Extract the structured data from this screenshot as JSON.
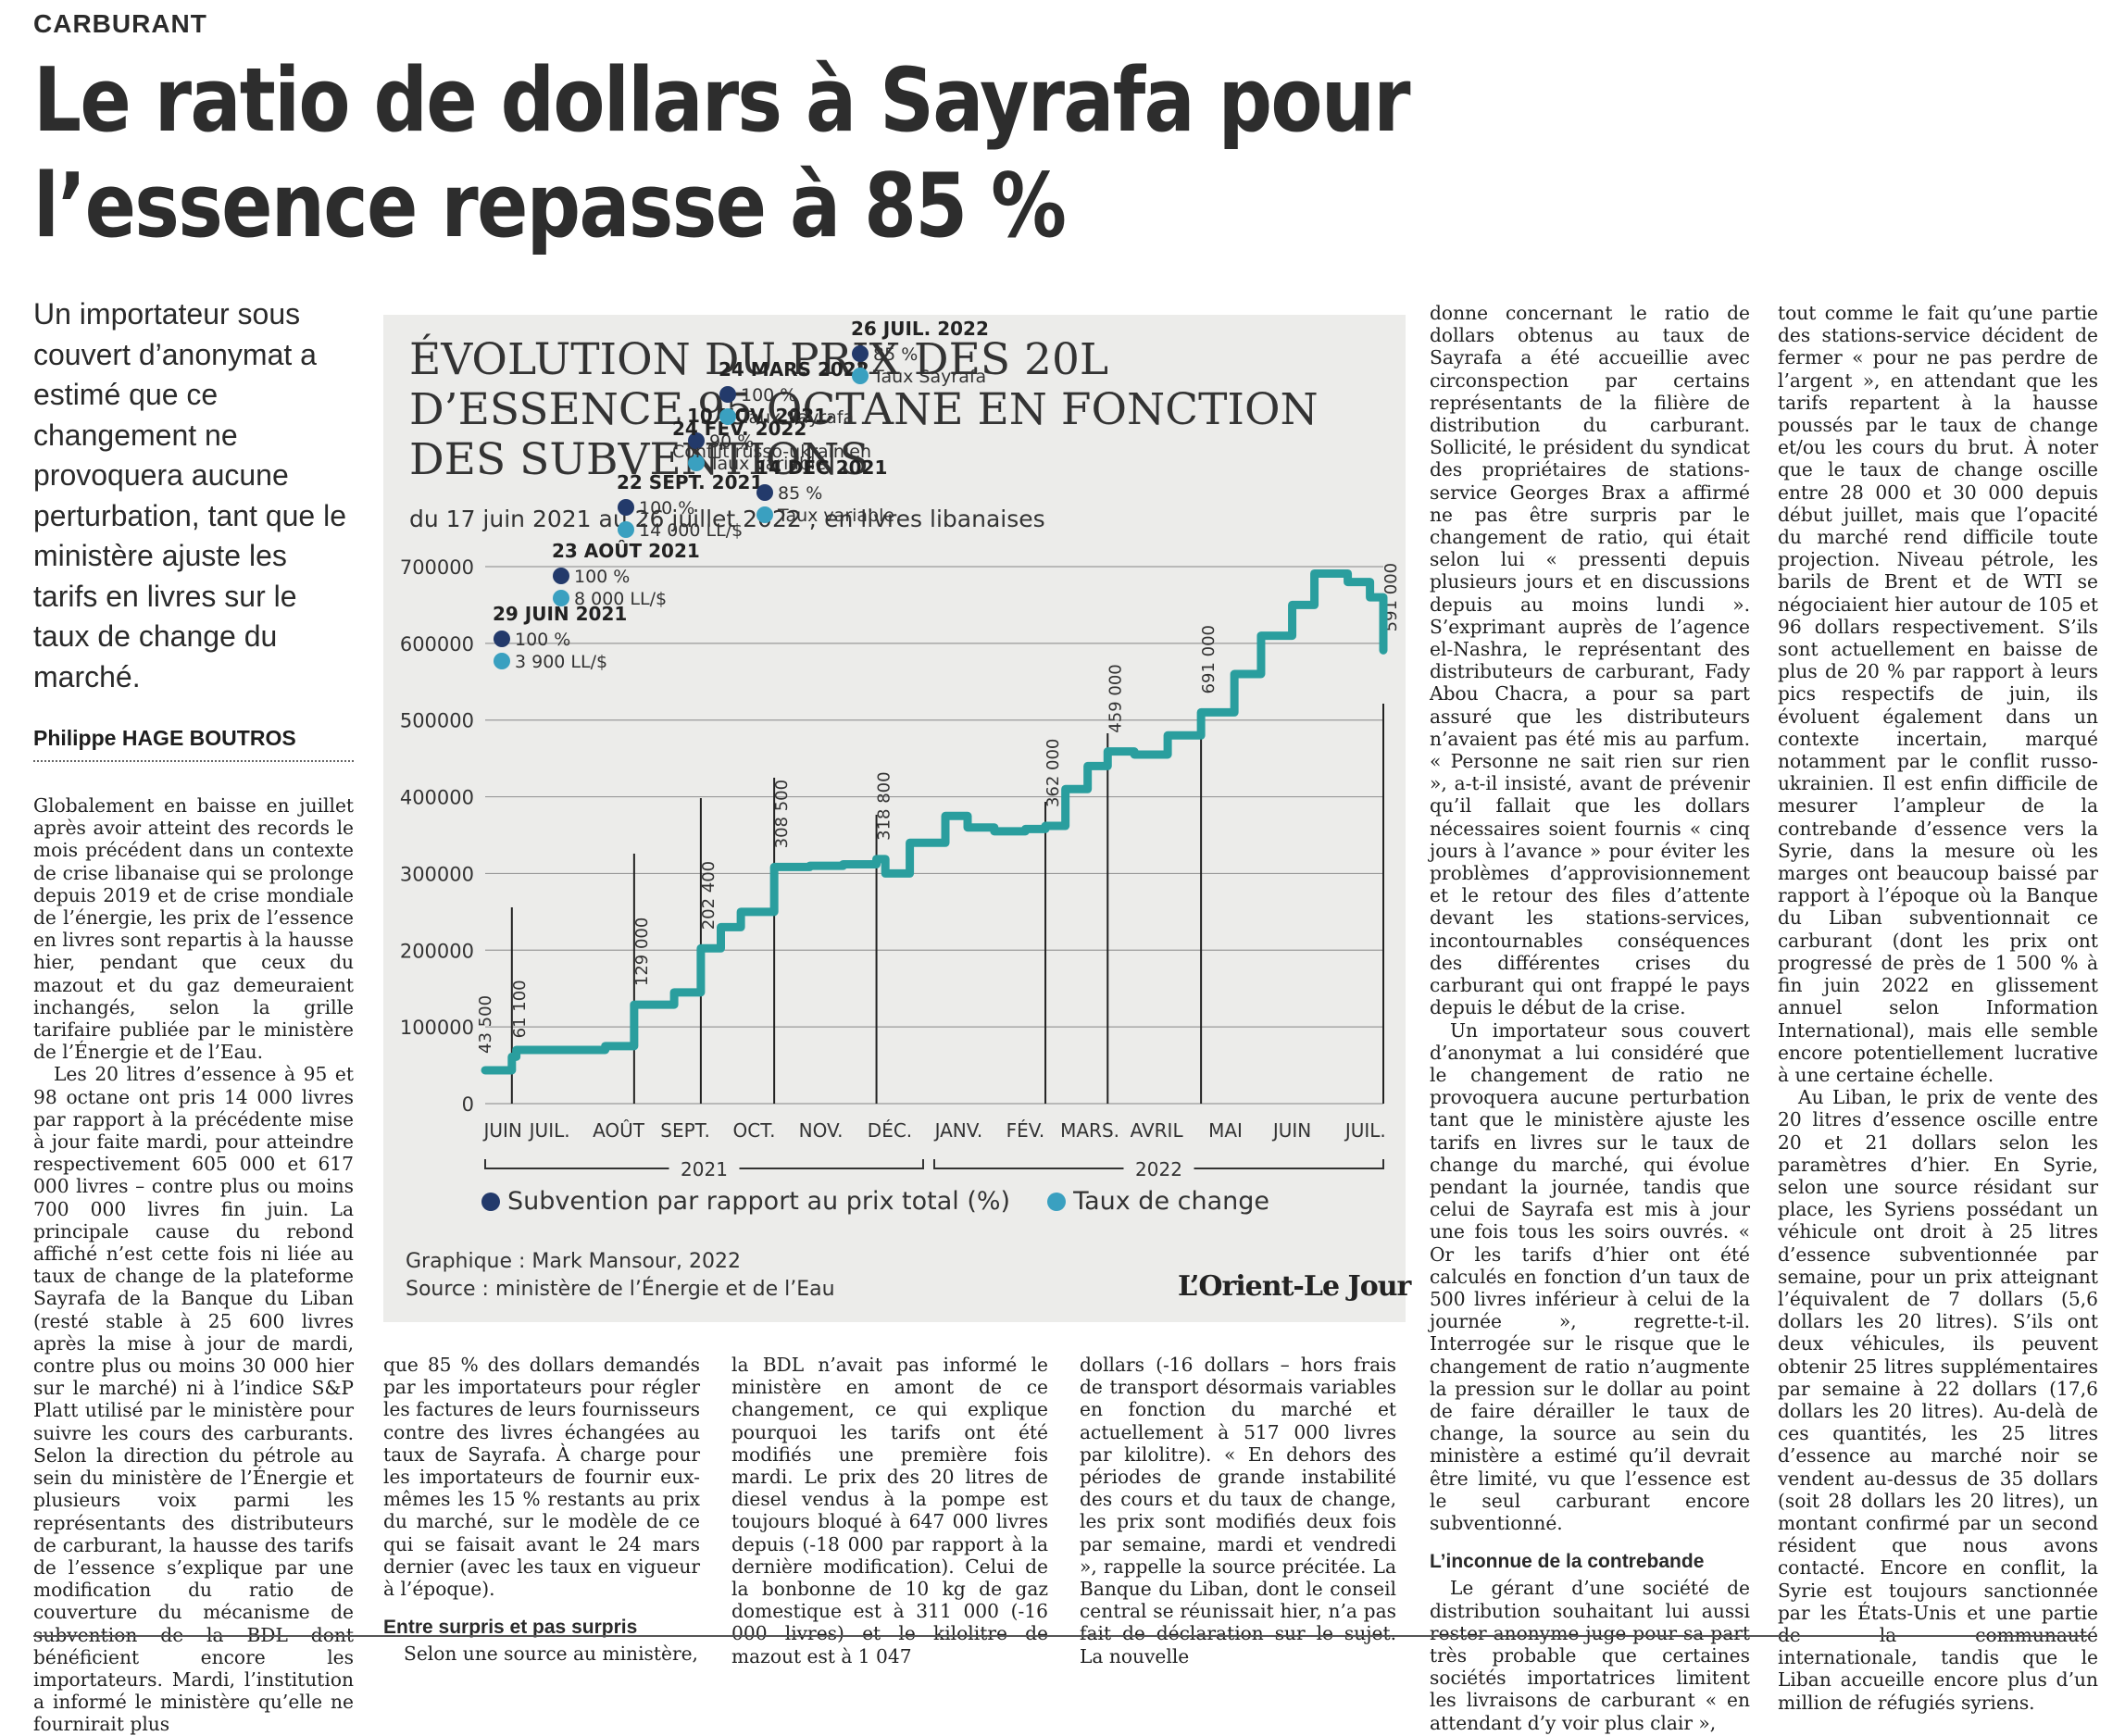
{
  "article": {
    "rubric": "CARBURANT",
    "headline": "Le ratio de dollars à Sayrafa pour l’essence repasse à 85 %",
    "chapeau": "Un importateur sous couvert d’anonymat a estimé que ce changement ne provoquera aucune perturbation, tant que le ministère ajuste les tarifs en livres sur le taux de change du marché.",
    "byline": "Philippe HAGE BOUTROS",
    "col1": [
      "Globalement en baisse en juillet après avoir atteint des records le mois précédent dans un contexte de crise libanaise qui se prolonge depuis 2019 et de crise mondiale de l’énergie, les prix de l’essence en livres sont repartis à la hausse hier, pendant que ceux du mazout et du gaz demeuraient inchangés, selon la grille tarifaire publiée par le ministère de l’Énergie et de l’Eau.",
      "Les 20 litres d’essence à 95 et 98 octane ont pris 14 000 livres par rapport à la précédente mise à jour faite mardi, pour atteindre respectivement 605 000 et 617 000 livres – contre plus ou moins 700 000 livres fin juin. La principale cause du rebond affiché n’est cette fois ni liée au taux de change de la plateforme Sayrafa de la Banque du Liban (resté stable à 25 600 livres après la mise à jour de mardi, contre plus ou moins 30 000 hier sur le marché) ni à l’indice S&P Platt utilisé par le ministère pour suivre les cours des carburants. Selon la direction du pétrole au sein du ministère de l’Énergie et plusieurs voix parmi les représentants des distributeurs de carburant, la hausse des tarifs de l’essence s’explique par une modification du ratio de couverture du mécanisme de subvention de la BDL dont bénéficient encore les importateurs. Mardi, l’institution a informé le ministère qu’elle ne fournirait plus"
    ],
    "col2": [
      "que 85 % des dollars demandés par les importateurs pour régler les factures de leurs fournisseurs contre des livres échangées au taux de Sayrafa. À charge pour les importateurs de fournir eux-mêmes les 15 % restants au prix du marché, sur le modèle de ce qui se faisait avant le 24 mars dernier (avec les taux en vigueur à l’époque)."
    ],
    "col2_subhead": "Entre surpris et pas surpris",
    "col2_after": "Selon une source au ministère,",
    "col3": [
      "la BDL n’avait pas informé le ministère en amont de ce changement, ce qui explique pourquoi les tarifs ont été modifiés une première fois mardi. Le prix des 20 litres de diesel vendus à la pompe est toujours bloqué à 647 000 livres depuis (-18 000 par rapport à la dernière modification). Celui de la bonbonne de 10 kg de gaz domestique est à 311 000 (-16 000 livres) et le kilolitre de mazout est à 1 047"
    ],
    "col4": [
      "dollars (-16 dollars – hors frais de transport désormais variables en fonction du marché et actuellement à 517 000 livres par kilolitre). « En dehors des périodes de grande instabilité des cours et du taux de change, les prix sont modifiés deux fois par semaine, mardi et vendredi », rappelle la source précitée. La Banque du Liban, dont le conseil central se réunissait hier, n’a pas fait de déclaration sur le sujet. La nouvelle"
    ],
    "col5": [
      "donne concernant le ratio de dollars obtenus au taux de Sayrafa a été accueillie avec circonspection par certains représentants de la filière de distribution du carburant. Sollicité, le président du syndicat des propriétaires de stations-service Georges Brax a affirmé ne pas être surpris par le changement de ratio, qui était selon lui « pressenti depuis plusieurs jours et en discussions depuis au moins lundi ». S’exprimant auprès de l’agence el-Nashra, le représentant des distributeurs de carburant, Fady Abou Chacra, a pour sa part assuré que les distributeurs n’avaient pas été mis au parfum. « Personne ne sait rien sur rien », a-t-il insisté, avant de prévenir qu’il fallait que les dollars nécessaires soient fournis « cinq jours à l’avance » pour éviter les problèmes d’approvisionnement et le retour des files d’attente devant les stations-services, incontournables conséquences des différentes crises du carburant qui ont frappé le pays depuis le début de la crise.",
      "Un importateur sous couvert d’anonymat a lui considéré que le changement de ratio ne provoquera aucune perturbation tant que le ministère ajuste les tarifs en livres sur le taux de change du marché, qui évolue pendant la journée, tandis que celui de Sayrafa est mis à jour une fois tous les soirs ouvrés. « Or les tarifs d’hier ont été calculés en fonction d’un taux de 500 livres inférieur à celui de la journée », regrette-t-il. Interrogée sur le risque que le changement de ratio n’augmente la pression sur le dollar au point de faire dérailler le taux de change, la source au sein du ministère a estimé qu’il devrait être limité, vu que l’essence est le seul carburant encore subventionné."
    ],
    "col5_subhead": "L’inconnue de la contrebande",
    "col5_after": "Le gérant d’une société de distribution souhaitant lui aussi rester anonyme juge pour sa part très probable que certaines sociétés importatrices limitent les livraisons de carburant « en attendant d’y voir plus clair »,",
    "col6": [
      "tout comme le fait qu’une partie des stations-service décident de fermer « pour ne pas perdre de l’argent », en attendant que les tarifs repartent à la hausse poussés par le taux de change et/ou les cours du brut. À noter que le taux de change oscille entre 28 000 et 30 000 depuis début juillet, mais que l’opacité du marché rend difficile toute projection. Niveau pétrole, les barils de Brent et de WTI se négociaient hier autour de 105 et 96 dollars respectivement. S’ils sont actuellement en baisse de plus de 20 % par rapport à leurs pics respectifs de juin, ils évoluent également dans un contexte incertain, marqué notamment par le conflit russo-ukrainien. Il est enfin difficile de mesurer l’ampleur de la contrebande d’essence vers la Syrie, dans la mesure où les marges ont beaucoup baissé par rapport à l’époque où la Banque du Liban subventionnait ce carburant (dont les prix ont progressé de près de 1 500 % à fin juin 2022 en glissement annuel selon Information International), mais elle semble encore potentiellement lucrative à une certaine échelle.",
      "Au Liban, le prix de vente des 20 litres d’essence oscille entre 20 et 21 dollars selon les paramètres d’hier. En Syrie, selon une source résidant sur place, les Syriens possédant un véhicule ont droit à 25 litres d’essence subventionnée par semaine, pour un prix atteignant l’équivalent de 7 dollars (5,6 dollars les 20 litres). S’ils ont deux véhicules, ils peuvent obtenir 25 litres supplémentaires par semaine à 22 dollars (17,6 dollars les 20 litres). Au-delà de ces quantités, les 25 litres d’essence au marché noir se vendent au-dessus de 35 dollars (soit 28 dollars les 20 litres), un montant confirmé par un second résident que nous avons contacté. Encore en conflit, la Syrie est toujours sanctionnée par les États-Unis et une partie de la communauté internationale, tandis que le Liban accueille encore plus d’un million de réfugiés syriens."
    ]
  },
  "infographic": {
    "title": "ÉVOLUTION DU PRIX DES 20L D’ESSENCE 95 OCTANE EN FONCTION DES SUBVENTIONS",
    "subtitle": "du 17 juin 2021 au 26 juillet 2022 ; en livres libanaises",
    "legend_subsidy": "Subvention par rapport au prix total (%)",
    "legend_rate": "Taux de change",
    "credit_line1": "Graphique : Mark Mansour, 2022",
    "credit_line2": "Source : ministère de l’Énergie et de l’Eau",
    "logo": "L’Orient-Le Jour",
    "colors": {
      "line": "#2a9e9e",
      "subsidy_dot": "#233a6b",
      "rate_dot": "#3aa0c0",
      "background": "#ececea"
    }
  },
  "chart_data": {
    "type": "line",
    "title": "ÉVOLUTION DU PRIX DES 20L D’ESSENCE 95 OCTANE EN FONCTION DES SUBVENTIONS",
    "subtitle": "du 17 juin 2021 au 26 juillet 2022 ; en livres libanaises",
    "xlabel": "",
    "ylabel": "",
    "ylim": [
      0,
      700000
    ],
    "yticks": [
      "0",
      "100000",
      "200000",
      "300000",
      "400000",
      "500000",
      "600000",
      "700000"
    ],
    "months": [
      "JUIN",
      "JUIL.",
      "AOÛT",
      "SEPT.",
      "OCT.",
      "NOV.",
      "DÉC.",
      "JANV.",
      "FÉV.",
      "MARS.",
      "AVRIL",
      "MAI",
      "JUIN",
      "JUIL."
    ],
    "years": [
      "2021",
      "2022"
    ],
    "grid": true,
    "series": [
      {
        "x": [
          "2021-06-17",
          "2021-06-29",
          "2021-07-01",
          "2021-08-10",
          "2021-08-23",
          "2021-09-10",
          "2021-09-22",
          "2021-10-01",
          "2021-10-10",
          "2021-10-25",
          "2021-11-10",
          "2021-11-25",
          "2021-12-10",
          "2021-12-14",
          "2021-12-25",
          "2022-01-10",
          "2022-01-20",
          "2022-02-01",
          "2022-02-15",
          "2022-02-24",
          "2022-03-05",
          "2022-03-15",
          "2022-03-24",
          "2022-04-05",
          "2022-04-20",
          "2022-05-05",
          "2022-05-20",
          "2022-06-01",
          "2022-06-15",
          "2022-06-25",
          "2022-07-10",
          "2022-07-20",
          "2022-07-26"
        ],
        "values": [
          43500,
          61100,
          70000,
          75000,
          129000,
          145000,
          202400,
          230000,
          250000,
          308500,
          310000,
          312000,
          318800,
          300000,
          340000,
          375000,
          360000,
          355000,
          358000,
          362000,
          410000,
          440000,
          459000,
          455000,
          480000,
          510000,
          560000,
          610000,
          650000,
          691000,
          680000,
          660000,
          591000
        ]
      }
    ],
    "value_labels": [
      "43 500",
      "61 100",
      "129 000",
      "202 400",
      "308 500",
      "318 800",
      "362 000",
      "459 000",
      "691 000",
      "591 000"
    ],
    "annotations": [
      {
        "date": "29 JUIN 2021",
        "subsidy": "100 %",
        "rate": "3 900 LL/$"
      },
      {
        "date": "23 AOÛT 2021",
        "subsidy": "100 %",
        "rate": "8 000 LL/$"
      },
      {
        "date": "22 SEPT. 2021",
        "subsidy": "100 %",
        "rate": "14 000 LL/$"
      },
      {
        "date": "10 NOV. 2021",
        "subsidy": "90 %",
        "rate": "Taux variable"
      },
      {
        "date": "14 DÉC 2021",
        "subsidy": "85 %",
        "rate": "Taux variable"
      },
      {
        "date": "24 FÉV. 2022",
        "note": "Conflit russo-ukrainien"
      },
      {
        "date": "24 MARS 2022",
        "subsidy": "100 %",
        "rate": "Taux Sayrafa"
      },
      {
        "date": "26 JUIL. 2022",
        "subsidy": "85 %",
        "rate": "Taux Sayrafa"
      }
    ]
  }
}
